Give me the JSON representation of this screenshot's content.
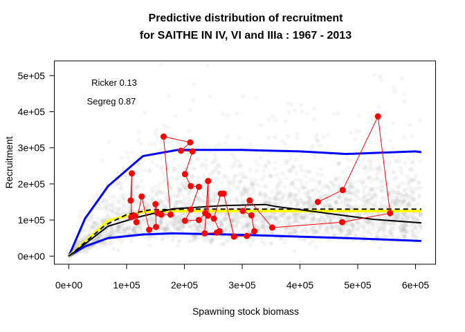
{
  "chart_data": {
    "type": "scatter",
    "title": [
      "Predictive distribution of recruitment",
      "for SAITHE IN IV, VI and IIIa : 1967 - 2013"
    ],
    "xlabel": "Spawning stock biomass",
    "ylabel": "Recruitment",
    "xlim": [
      -25000,
      635000
    ],
    "ylim": [
      -20000,
      555000
    ],
    "x_ticks": [
      0,
      100000,
      200000,
      300000,
      400000,
      500000,
      600000
    ],
    "x_tick_labels": [
      "0e+00",
      "1e+05",
      "2e+05",
      "3e+05",
      "4e+05",
      "5e+05",
      "6e+05"
    ],
    "y_ticks": [
      0,
      100000,
      200000,
      300000,
      400000,
      500000
    ],
    "y_tick_labels": [
      "0e+00",
      "1e+05",
      "2e+05",
      "3e+05",
      "4e+05",
      "5e+05"
    ],
    "annotations": [
      "Ricker 0.13",
      "Segreg 0.87"
    ],
    "colors": {
      "observed": "#ff0000",
      "interval": "#0000ff",
      "ricker": "#000000",
      "segreg": "#ffff00",
      "median": "#000000",
      "cloud": "#808080"
    },
    "series": [
      {
        "name": "Observed",
        "kind": "points-line",
        "x": [
          107000,
          109000,
          108000,
          114000,
          117000,
          126000,
          139000,
          151000,
          150000,
          153000,
          160000,
          176000,
          164000,
          210000,
          194000,
          214000,
          201000,
          211000,
          225000,
          211000,
          201000,
          225000,
          236000,
          241000,
          241000,
          235000,
          256000,
          261000,
          251000,
          263000,
          268000,
          286000,
          308000,
          321000,
          316000,
          301000,
          313000,
          352000,
          473000,
          556000,
          535000,
          474000,
          431000
        ],
        "y": [
          154000,
          229000,
          108000,
          112000,
          94000,
          165000,
          73000,
          81000,
          144000,
          119000,
          115000,
          115000,
          331000,
          315000,
          292000,
          290000,
          227000,
          194000,
          192000,
          129000,
          98000,
          100000,
          119000,
          112000,
          208000,
          63000,
          65000,
          69000,
          104000,
          173000,
          173000,
          54000,
          56000,
          69000,
          113000,
          125000,
          154000,
          79000,
          94000,
          119000,
          387000,
          183000,
          150000
        ]
      },
      {
        "name": "Upper interval",
        "kind": "line",
        "x": [
          0,
          28000,
          68000,
          128000,
          188000,
          300000,
          400000,
          480000,
          600000,
          610000
        ],
        "y": [
          0,
          104000,
          194000,
          277000,
          294000,
          294000,
          290000,
          283000,
          290000,
          288000
        ]
      },
      {
        "name": "Lower interval",
        "kind": "line",
        "x": [
          0,
          28000,
          68000,
          128000,
          180000,
          276000,
          360000,
          480000,
          610000
        ],
        "y": [
          0,
          27000,
          50000,
          60000,
          63000,
          60000,
          56000,
          50000,
          42000
        ]
      },
      {
        "name": "Ricker",
        "kind": "line",
        "x": [
          0,
          68000,
          120000,
          180000,
          267000,
          340000,
          360000,
          455000,
          527000,
          610000
        ],
        "y": [
          0,
          83000,
          108000,
          131000,
          140000,
          143000,
          137000,
          117000,
          102000,
          92000
        ]
      },
      {
        "name": "Segreg",
        "kind": "line",
        "x": [
          0,
          68000,
          128000,
          200000,
          250000,
          610000
        ],
        "y": [
          0,
          98000,
          123000,
          125000,
          125000,
          125000
        ]
      },
      {
        "name": "Median",
        "kind": "dashed",
        "x": [
          0,
          63000,
          100000,
          140000,
          200000,
          610000
        ],
        "y": [
          0,
          86000,
          115000,
          128000,
          130000,
          130000
        ]
      }
    ]
  }
}
